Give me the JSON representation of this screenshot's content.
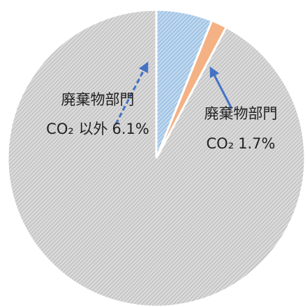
{
  "chart_data": {
    "type": "pie",
    "categories": [
      [
        "廃棄物部門",
        "CO₂ 以外"
      ],
      [
        "廃棄物部門",
        "CO₂"
      ],
      null
    ],
    "values": [
      6.1,
      1.7,
      92.2
    ],
    "value_labels": [
      "6.1%",
      "1.7%",
      null
    ],
    "colors": [
      "#bdd7ee",
      "#f4b183",
      "#d9d9d9"
    ],
    "hatch": [
      true,
      false,
      true
    ]
  }
}
